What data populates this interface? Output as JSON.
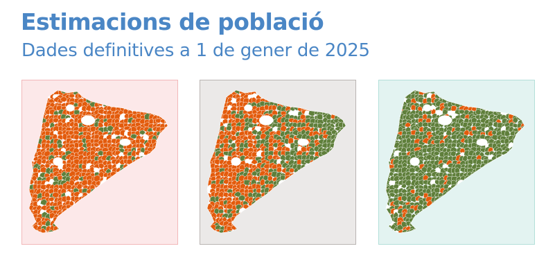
{
  "header": {
    "title": "Estimacions de població",
    "subtitle": "Dades definitives a 1 de gener de 2025"
  },
  "colors": {
    "title": "#4a86c5",
    "orange": "#e35b0c",
    "green": "#5f7f3b",
    "no_data": "#ffffff"
  },
  "maps": [
    {
      "name": "map-1",
      "background": "#fce8e9",
      "border": "#f2b7b9",
      "orange_share": 0.78,
      "pattern": "mostly-orange"
    },
    {
      "name": "map-2",
      "background": "#ebe9e8",
      "border": "#b9b4b2",
      "orange_share": 0.45,
      "pattern": "orange-west-green-east"
    },
    {
      "name": "map-3",
      "background": "#e3f3f1",
      "border": "#b3dfd9",
      "orange_share": 0.15,
      "pattern": "mostly-green"
    }
  ]
}
